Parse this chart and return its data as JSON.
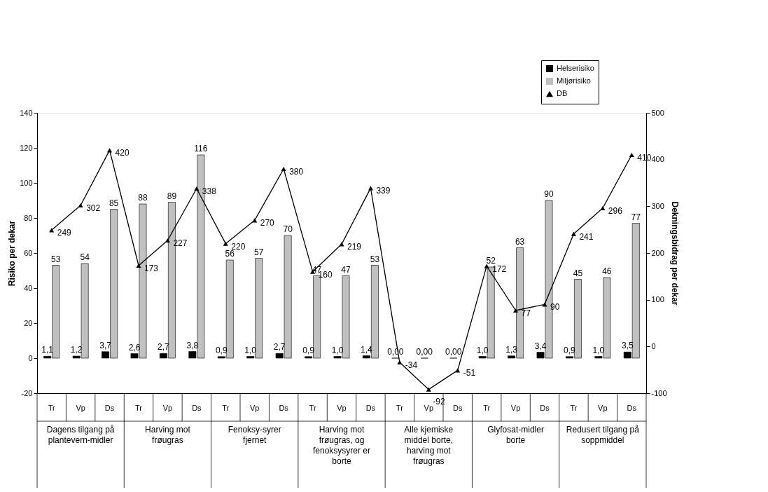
{
  "chart_data": {
    "type": "bar",
    "ylabel": "Risiko per dekar",
    "y2label": "Dekningsbidrag per dekar",
    "categories": [
      "Tr",
      "Vp",
      "Ds",
      "Tr",
      "Vp",
      "Ds",
      "Tr",
      "Vp",
      "Ds",
      "Tr",
      "Vp",
      "Ds",
      "Tr",
      "Vp",
      "Ds",
      "Tr",
      "Vp",
      "Ds",
      "Tr",
      "Vp",
      "Ds"
    ],
    "series": [
      {
        "name": "Helserisiko",
        "color": "#000000",
        "values": [
          1.1,
          1.2,
          3.7,
          2.6,
          2.7,
          3.8,
          0.9,
          1.0,
          2.7,
          0.9,
          1.0,
          1.4,
          0,
          0,
          0,
          1.0,
          1.3,
          3.4,
          0.9,
          1.0,
          3.5
        ],
        "value_labels": [
          "1,1",
          "1,2",
          "3,7",
          "2,6",
          "2,7",
          "3,8",
          "0,9",
          "1,0",
          "2,7",
          "0,9",
          "1,0",
          "1,4",
          "0,00",
          "0,00",
          "0,00",
          "1,0",
          "1,3",
          "3,4",
          "0,9",
          "1,0",
          "3,5"
        ]
      },
      {
        "name": "Miljørisiko",
        "color": "#c0c0c0",
        "values": [
          53,
          54,
          85,
          88,
          89,
          116,
          56,
          57,
          70,
          47,
          47,
          53,
          null,
          null,
          null,
          52,
          63,
          90,
          45,
          46,
          77
        ],
        "value_labels": [
          "53",
          "54",
          "85",
          "88",
          "89",
          "116",
          "56",
          "57",
          "70",
          "47",
          "47",
          "53",
          null,
          null,
          null,
          "52",
          "63",
          "90",
          "45",
          "46",
          "77"
        ]
      },
      {
        "name": "DB",
        "type": "line",
        "axis": "y2",
        "color": "#000000",
        "marker": "triangle",
        "values": [
          249,
          302,
          420,
          173,
          227,
          338,
          220,
          270,
          380,
          160,
          219,
          339,
          -34,
          -92,
          -51,
          172,
          77,
          90,
          241,
          296,
          410
        ],
        "value_labels": [
          "249",
          "302",
          "420",
          "173",
          "227",
          "338",
          "220",
          "270",
          "380",
          "160",
          "219",
          "339",
          "-34",
          "-92",
          "-51",
          "172",
          "77",
          "90",
          "241",
          "296",
          "410"
        ]
      }
    ],
    "ylim": [
      -20,
      140
    ],
    "yticks": [
      -20,
      0,
      20,
      40,
      60,
      80,
      100,
      120,
      140
    ],
    "y2lim": [
      -100,
      500
    ],
    "y2ticks": [
      -100,
      0,
      100,
      200,
      300,
      400,
      500
    ],
    "annotations": [
      "Dagens tilgang på plantevern-midler",
      "Harving mot frøugras",
      "Fenoksy-syrer fjernet",
      "Harving mot frøugras, og fenoksysyrer er borte",
      "Alle kjemiske middel borte, harving mot frøugras",
      "Glyfosat-midler borte",
      "Redusert tilgang på soppmiddel"
    ],
    "legend": "top right",
    "grid": false
  }
}
